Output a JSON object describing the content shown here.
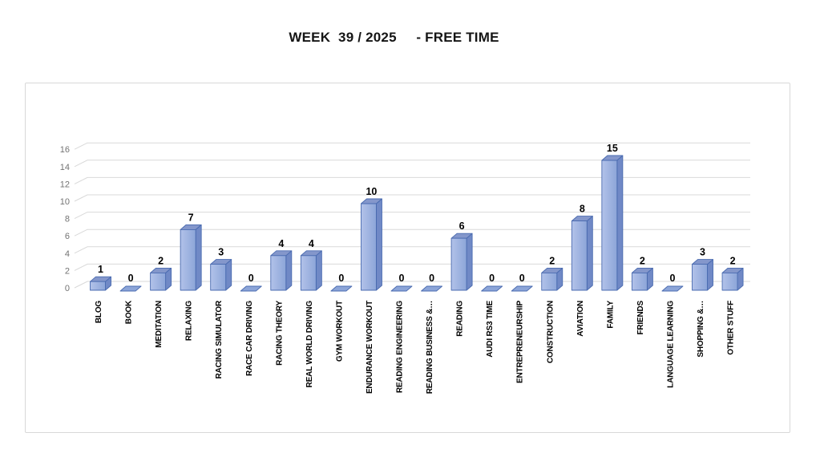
{
  "title": "WEEK  39 / 2025     - FREE TIME",
  "colors": {
    "bar_front_light": "#B2C2E9",
    "bar_front_dark": "#8CA5D8",
    "bar_side": "#7089C6",
    "bar_top": "#8497CB",
    "bar_border": "#4A6BB0",
    "gridline": "#D9D9D9",
    "axis_label": "#737373",
    "frame_border": "#D8D8D8",
    "label_text": "#000000"
  },
  "chart_data": {
    "type": "bar",
    "style": "3d-cylinder-box",
    "title": "WEEK  39 / 2025     - FREE TIME",
    "categories": [
      "BLOG",
      "BOOK",
      "MEDITATION",
      "RELAXING",
      "RACING SIMULATOR",
      "RACE CAR DRIVING",
      "RACING THEORY",
      "REAL WORLD DRIVING",
      "GYM WORKOUT",
      "ENDURANCE WORKOUT",
      "READING ENGINEERING",
      "READING BUSINESS &…",
      "READING",
      "AUDI RS3 TIME",
      "ENTREPRENEURSHIP",
      "CONSTRUCTION",
      "AVIATION",
      "FAMILY",
      "FRIENDS",
      "LANGUAGE LEARNING",
      "SHOPPING &…",
      "OTHER STUFF"
    ],
    "values": [
      1,
      0,
      2,
      7,
      3,
      0,
      4,
      4,
      0,
      10,
      0,
      0,
      6,
      0,
      0,
      2,
      8,
      15,
      2,
      0,
      3,
      2
    ],
    "xlabel": "",
    "ylabel": "",
    "ylim": [
      0,
      16
    ],
    "yticks": [
      0,
      2,
      4,
      6,
      8,
      10,
      12,
      14,
      16
    ],
    "grid": true,
    "legend": false,
    "data_labels": true
  }
}
